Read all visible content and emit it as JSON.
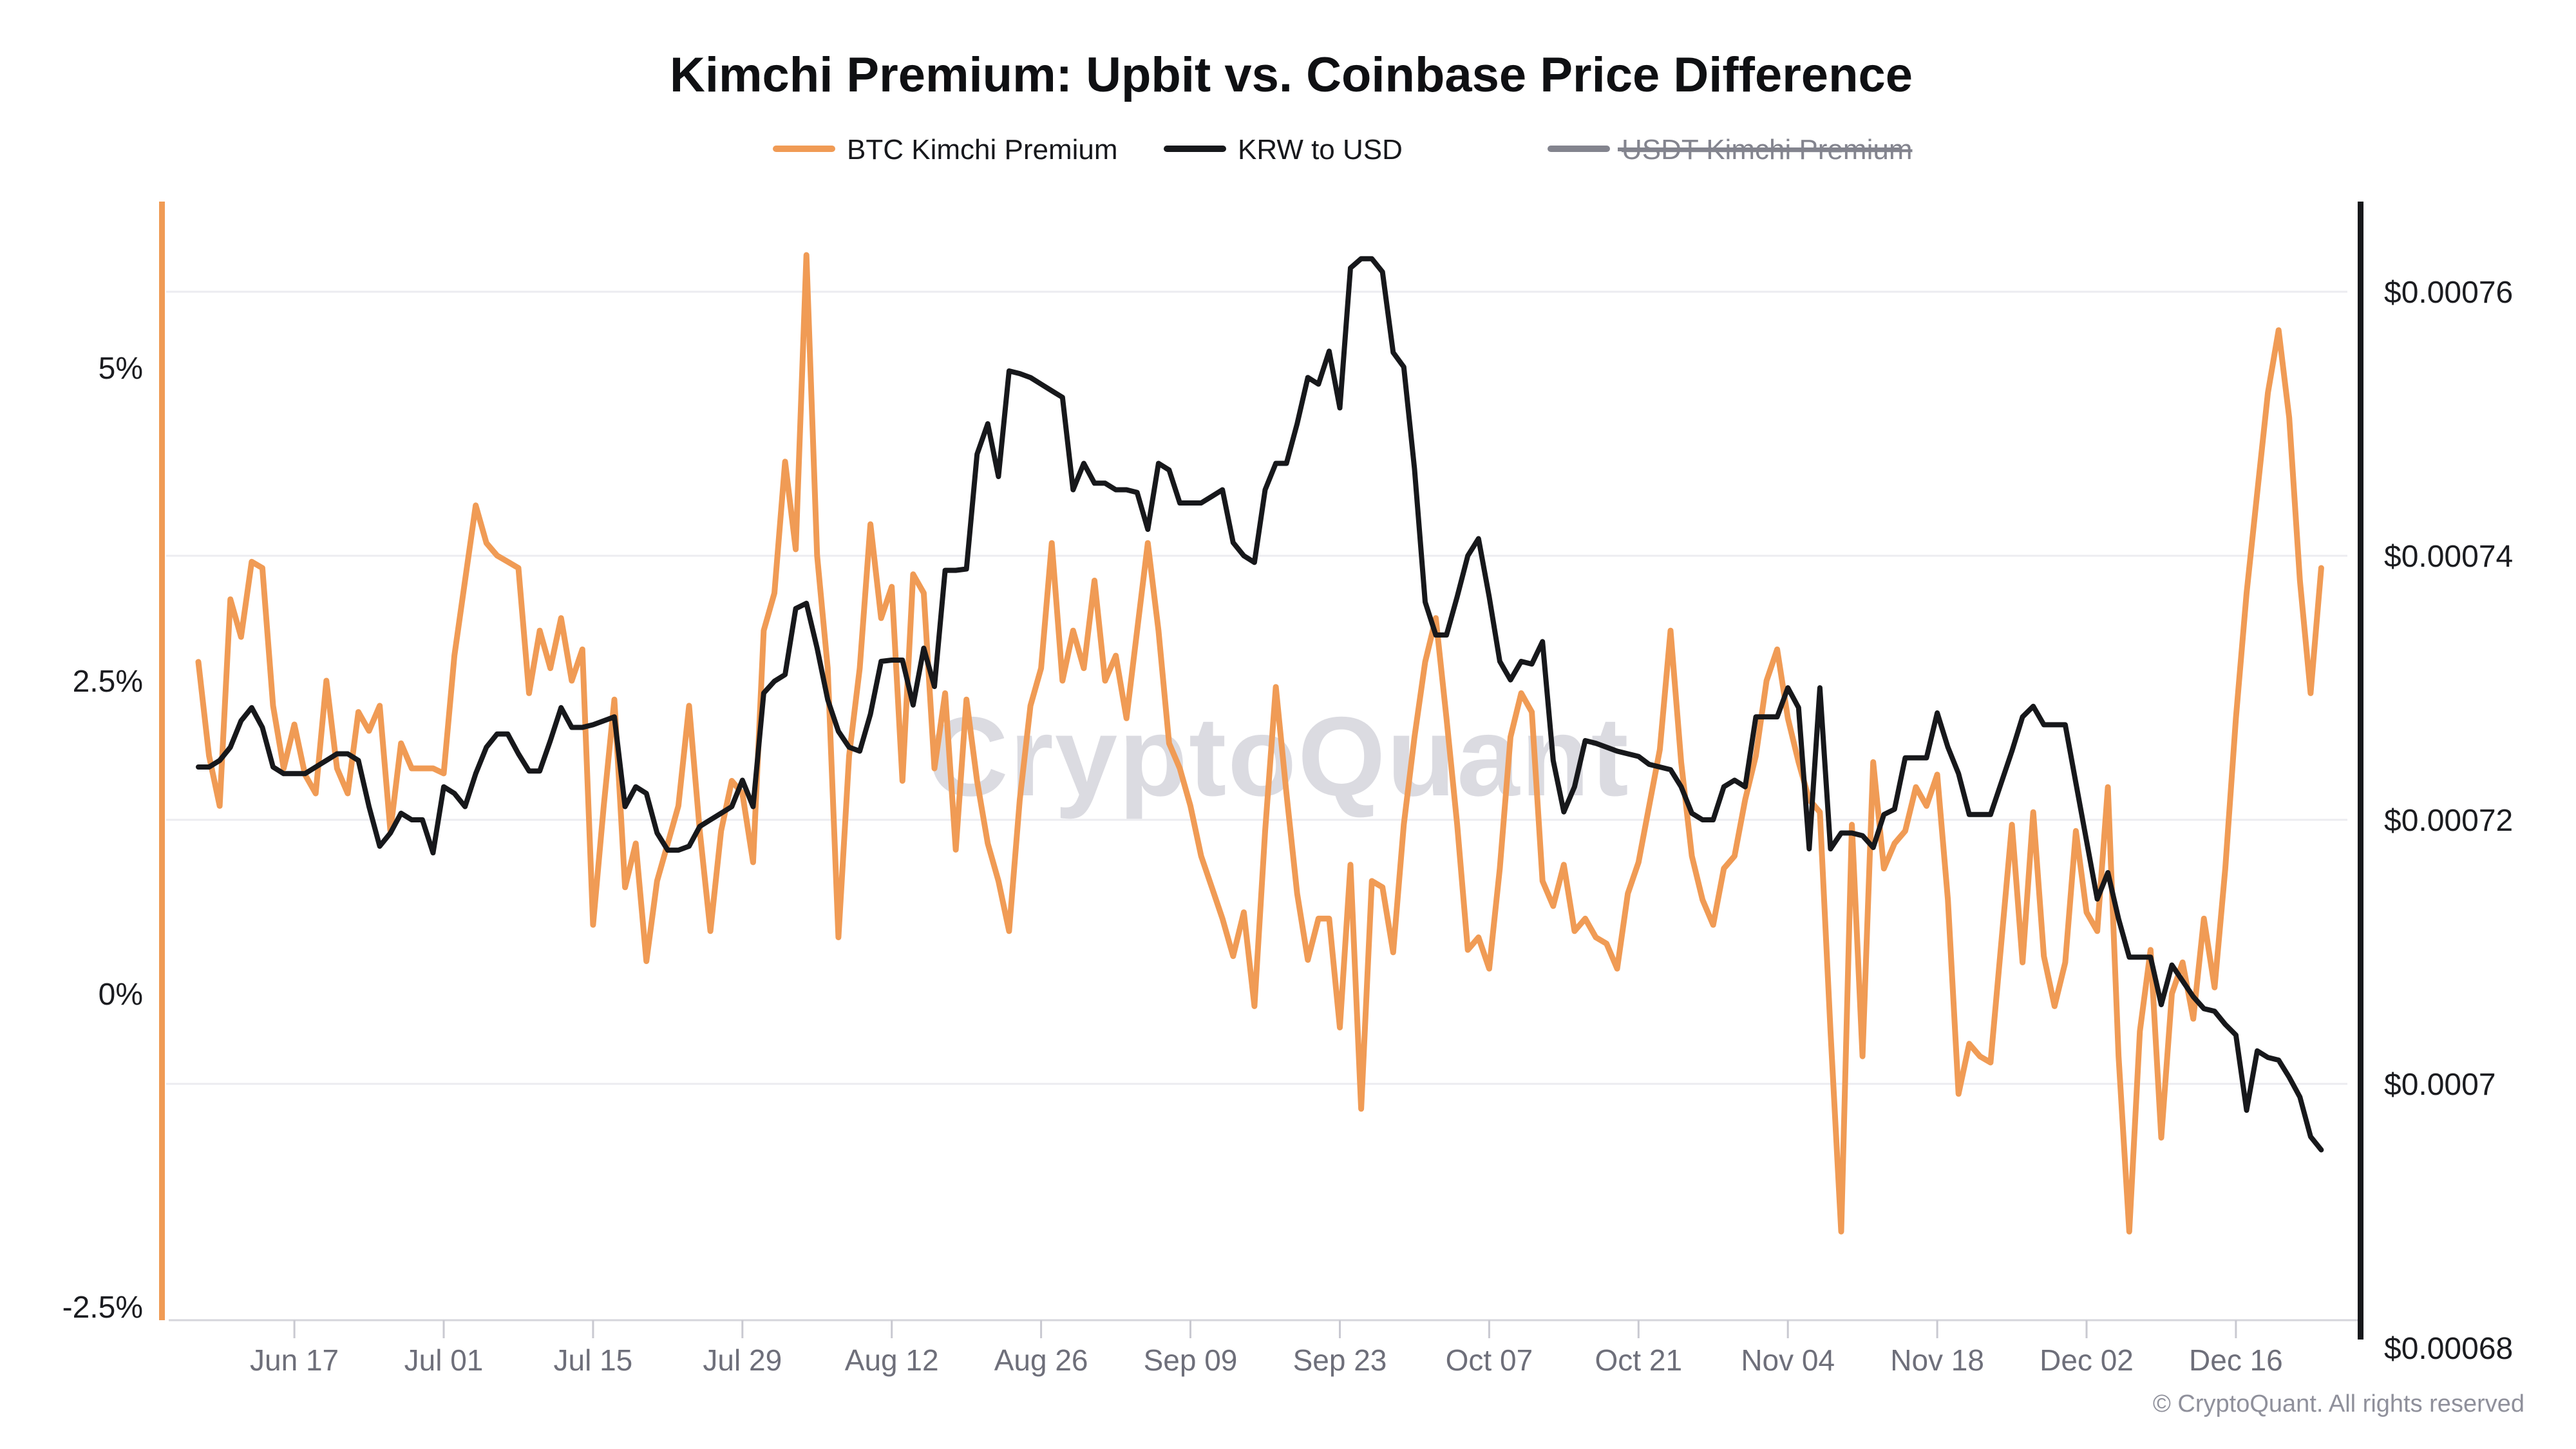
{
  "header": {
    "title": "Kimchi Premium: Upbit vs. Coinbase Price Difference"
  },
  "legend": {
    "items": [
      {
        "label": "BTC Kimchi Premium",
        "color": "#F09B55",
        "disabled": false
      },
      {
        "label": "KRW to USD",
        "color": "#17181B",
        "disabled": false
      },
      {
        "label": "USDT Kimchi Premium",
        "color": "#83848E",
        "disabled": true
      }
    ]
  },
  "watermark": "CryptoQuant",
  "footer": {
    "copyright": "© CryptoQuant. All rights reserved"
  },
  "chart_data": {
    "type": "line",
    "title": "Kimchi Premium: Upbit vs. Coinbase Price Difference",
    "x_unit": "daily points, day 0 = Jun 08, day 199 = Dec 24",
    "x_axis": {
      "tick_labels": [
        "Jun 17",
        "Jul 01",
        "Jul 15",
        "Jul 29",
        "Aug 12",
        "Aug 26",
        "Sep 09",
        "Sep 23",
        "Oct 07",
        "Oct 21",
        "Nov 04",
        "Nov 18",
        "Dec 02",
        "Dec 16"
      ],
      "tick_days": [
        9,
        23,
        37,
        51,
        65,
        79,
        93,
        107,
        121,
        135,
        149,
        163,
        177,
        191
      ]
    },
    "y_left": {
      "unit": "%",
      "ticks": [
        5,
        2.5,
        0,
        -2.5
      ],
      "labels": [
        "5%",
        "2.5%",
        "0%",
        "-2.5%"
      ],
      "range": [
        -2.6,
        6.3
      ],
      "grid": false
    },
    "y_right": {
      "unit": "USD",
      "ticks": [
        0.00076,
        0.00074,
        0.00072,
        0.0007,
        0.00068
      ],
      "labels": [
        "$0.00076",
        "$0.00074",
        "$0.00072",
        "$0.0007",
        "$0.00068"
      ],
      "range": [
        0.000679,
        0.000763
      ],
      "grid": true
    },
    "legend_position": "top-center",
    "series": [
      {
        "name": "BTC Kimchi Premium",
        "axis": "left",
        "color": "#F09B55",
        "disabled": false,
        "values": [
          2.65,
          1.9,
          1.5,
          3.15,
          2.85,
          3.45,
          3.4,
          2.3,
          1.8,
          2.15,
          1.75,
          1.6,
          2.5,
          1.8,
          1.6,
          2.25,
          2.1,
          2.3,
          1.3,
          2.0,
          1.8,
          1.8,
          1.8,
          1.76,
          2.7,
          3.3,
          3.9,
          3.6,
          3.5,
          3.45,
          3.4,
          2.4,
          2.9,
          2.6,
          3.0,
          2.5,
          2.75,
          0.55,
          1.5,
          2.35,
          0.85,
          1.2,
          0.26,
          0.9,
          1.2,
          1.5,
          2.3,
          1.3,
          0.5,
          1.3,
          1.7,
          1.6,
          1.05,
          2.9,
          3.2,
          4.25,
          3.55,
          5.9,
          3.5,
          2.6,
          0.45,
          1.9,
          2.6,
          3.75,
          3.0,
          3.25,
          1.7,
          3.35,
          3.2,
          1.8,
          2.4,
          1.15,
          2.35,
          1.7,
          1.2,
          0.9,
          0.5,
          1.55,
          2.3,
          2.6,
          3.6,
          2.5,
          2.9,
          2.6,
          3.3,
          2.5,
          2.7,
          2.2,
          2.9,
          3.6,
          2.9,
          2.0,
          1.8,
          1.5,
          1.1,
          0.85,
          0.6,
          0.3,
          0.65,
          -0.1,
          1.3,
          2.45,
          1.6,
          0.8,
          0.27,
          0.6,
          0.6,
          -0.27,
          1.03,
          -0.92,
          0.9,
          0.85,
          0.33,
          1.35,
          2.05,
          2.65,
          3.0,
          2.2,
          1.35,
          0.35,
          0.45,
          0.2,
          1.0,
          2.05,
          2.4,
          2.25,
          0.9,
          0.7,
          1.03,
          0.5,
          0.6,
          0.45,
          0.4,
          0.2,
          0.8,
          1.05,
          1.5,
          1.95,
          2.9,
          1.85,
          1.1,
          0.75,
          0.55,
          1.0,
          1.1,
          1.55,
          1.9,
          2.5,
          2.75,
          2.2,
          1.85,
          1.55,
          1.45,
          -0.3,
          -1.9,
          1.35,
          -0.5,
          1.85,
          1.0,
          1.2,
          1.3,
          1.65,
          1.5,
          1.75,
          0.75,
          -0.8,
          -0.4,
          -0.5,
          -0.55,
          0.4,
          1.35,
          0.25,
          1.45,
          0.3,
          -0.1,
          0.25,
          1.3,
          0.65,
          0.5,
          1.65,
          -0.5,
          -1.9,
          -0.3,
          0.35,
          -1.15,
          0.0,
          0.25,
          -0.2,
          0.6,
          0.05,
          1.0,
          2.2,
          3.2,
          4.0,
          4.8,
          5.3,
          4.6,
          3.3,
          2.4,
          3.4
        ]
      },
      {
        "name": "KRW to USD",
        "axis": "right",
        "color": "#17181B",
        "disabled": false,
        "values": [
          0.000724,
          0.000724,
          0.0007245,
          0.0007255,
          0.0007275,
          0.0007285,
          0.000727,
          0.000724,
          0.0007235,
          0.0007235,
          0.0007235,
          0.000724,
          0.0007245,
          0.000725,
          0.000725,
          0.0007245,
          0.000721,
          0.000718,
          0.000719,
          0.0007205,
          0.00072,
          0.00072,
          0.0007175,
          0.0007225,
          0.000722,
          0.000721,
          0.0007235,
          0.0007255,
          0.0007265,
          0.0007265,
          0.000725,
          0.0007237,
          0.0007237,
          0.000726,
          0.0007285,
          0.000727,
          0.000727,
          0.0007272,
          0.0007275,
          0.0007278,
          0.000721,
          0.0007225,
          0.000722,
          0.000719,
          0.0007177,
          0.0007177,
          0.000718,
          0.0007195,
          0.00072,
          0.0007205,
          0.000721,
          0.000723,
          0.000721,
          0.0007296,
          0.0007305,
          0.000731,
          0.000736,
          0.0007364,
          0.000733,
          0.0007291,
          0.0007267,
          0.0007255,
          0.0007252,
          0.000728,
          0.000732,
          0.0007321,
          0.0007321,
          0.0007287,
          0.000733,
          0.0007301,
          0.0007389,
          0.0007389,
          0.000739,
          0.0007477,
          0.00075,
          0.000746,
          0.000754,
          0.0007538,
          0.0007535,
          0.000753,
          0.0007525,
          0.000752,
          0.000745,
          0.000747,
          0.0007455,
          0.0007455,
          0.000745,
          0.000745,
          0.0007448,
          0.000742,
          0.000747,
          0.0007465,
          0.000744,
          0.000744,
          0.000744,
          0.0007445,
          0.000745,
          0.000741,
          0.00074,
          0.0007395,
          0.000745,
          0.000747,
          0.000747,
          0.00075,
          0.0007535,
          0.000753,
          0.0007555,
          0.0007512,
          0.0007618,
          0.0007625,
          0.0007625,
          0.0007615,
          0.0007554,
          0.0007543,
          0.0007466,
          0.0007365,
          0.000734,
          0.000734,
          0.0007369,
          0.00074,
          0.0007413,
          0.0007369,
          0.000732,
          0.0007306,
          0.000732,
          0.0007318,
          0.0007335,
          0.0007245,
          0.0007206,
          0.0007225,
          0.000726,
          0.0007258,
          0.0007255,
          0.0007252,
          0.000725,
          0.0007248,
          0.0007242,
          0.000724,
          0.0007238,
          0.0007225,
          0.0007205,
          0.00072,
          0.00072,
          0.0007225,
          0.000723,
          0.0007225,
          0.0007278,
          0.0007278,
          0.0007278,
          0.00073,
          0.0007285,
          0.0007178,
          0.00073,
          0.0007178,
          0.000719,
          0.000719,
          0.0007188,
          0.0007179,
          0.0007204,
          0.0007208,
          0.0007247,
          0.0007247,
          0.0007247,
          0.0007281,
          0.0007255,
          0.0007235,
          0.0007204,
          0.0007204,
          0.0007204,
          0.0007228,
          0.0007252,
          0.0007278,
          0.0007286,
          0.0007272,
          0.0007272,
          0.0007272,
          0.0007228,
          0.0007184,
          0.000714,
          0.000716,
          0.0007125,
          0.0007096,
          0.0007096,
          0.0007096,
          0.000706,
          0.000709,
          0.0007078,
          0.0007066,
          0.0007057,
          0.0007055,
          0.0007045,
          0.0007037,
          0.000698,
          0.0007025,
          0.000702,
          0.0007018,
          0.0007005,
          0.000699,
          0.000696,
          0.000695
        ]
      },
      {
        "name": "USDT Kimchi Premium",
        "axis": "left",
        "color": "#83848E",
        "disabled": true,
        "values": []
      }
    ]
  }
}
